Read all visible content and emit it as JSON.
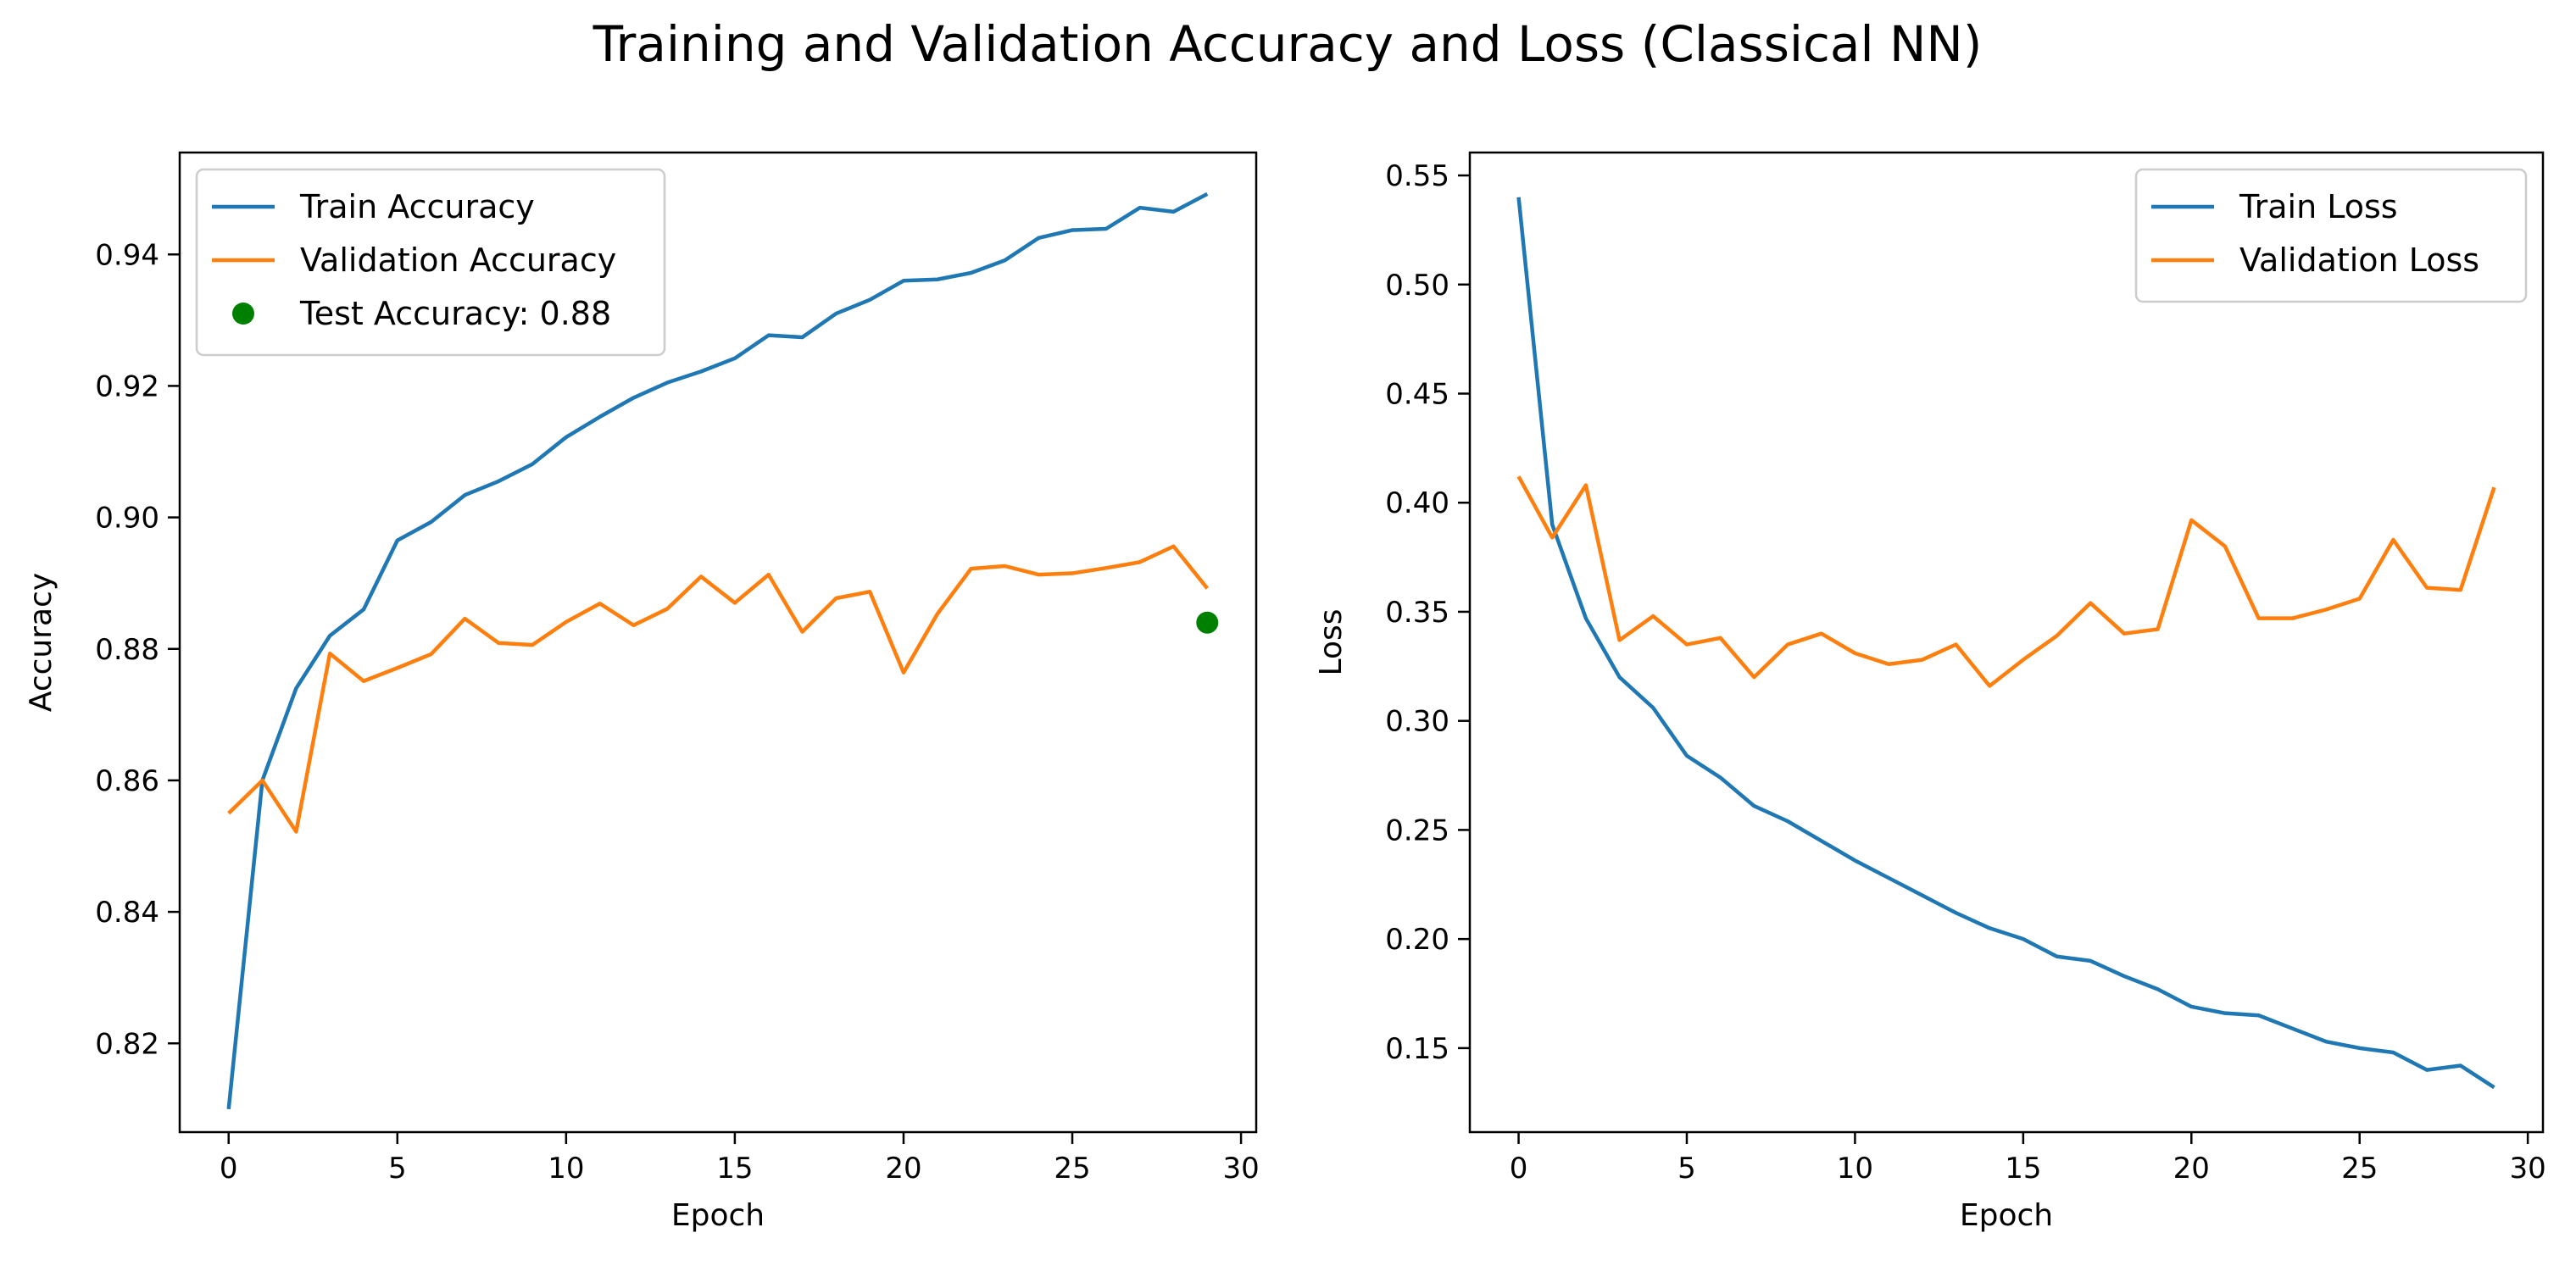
{
  "suptitle": "Training and Validation Accuracy and Loss (Classical NN)",
  "chart_data": [
    {
      "type": "line",
      "xlabel": "Epoch",
      "ylabel": "Accuracy",
      "xlim": [
        -1.45,
        30.45
      ],
      "ylim": [
        0.8065,
        0.9555
      ],
      "xticks": [
        0,
        5,
        10,
        15,
        20,
        25,
        30
      ],
      "xtick_labels": [
        "0",
        "5",
        "10",
        "15",
        "20",
        "25",
        "30"
      ],
      "yticks": [
        0.82,
        0.84,
        0.86,
        0.88,
        0.9,
        0.92,
        0.94
      ],
      "ytick_labels": [
        "0.82",
        "0.84",
        "0.86",
        "0.88",
        "0.90",
        "0.92",
        "0.94"
      ],
      "grid": false,
      "legend_position": "top-left",
      "x": [
        0,
        1,
        2,
        3,
        4,
        5,
        6,
        7,
        8,
        9,
        10,
        11,
        12,
        13,
        14,
        15,
        16,
        17,
        18,
        19,
        20,
        21,
        22,
        23,
        24,
        25,
        26,
        27,
        28,
        29
      ],
      "series": [
        {
          "name": "Train Accuracy",
          "color": "#1f77b4",
          "values": [
            0.81,
            0.86,
            0.874,
            0.882,
            0.886,
            0.8965,
            0.8993,
            0.9034,
            0.9055,
            0.9081,
            0.9122,
            0.9153,
            0.9182,
            0.9205,
            0.9222,
            0.9242,
            0.9277,
            0.9274,
            0.931,
            0.9331,
            0.936,
            0.9362,
            0.9372,
            0.9391,
            0.9425,
            0.9437,
            0.9439,
            0.9471,
            0.9465,
            0.9492
          ]
        },
        {
          "name": "Validation Accuracy",
          "color": "#ff7f0e",
          "values": [
            0.855,
            0.86,
            0.8522,
            0.8793,
            0.8751,
            0.8771,
            0.8792,
            0.8846,
            0.8809,
            0.8806,
            0.8841,
            0.8869,
            0.8836,
            0.8861,
            0.891,
            0.887,
            0.8913,
            0.8826,
            0.8877,
            0.8887,
            0.8764,
            0.8853,
            0.8922,
            0.8926,
            0.8913,
            0.8915,
            0.8923,
            0.8932,
            0.8956,
            0.8892
          ]
        }
      ],
      "points": [
        {
          "name": "Test Accuracy: 0.88",
          "color": "#008000",
          "x": 29,
          "y": 0.884
        }
      ]
    },
    {
      "type": "line",
      "xlabel": "Epoch",
      "ylabel": "Loss",
      "xlim": [
        -1.45,
        30.45
      ],
      "ylim": [
        0.1115,
        0.5605
      ],
      "xticks": [
        0,
        5,
        10,
        15,
        20,
        25,
        30
      ],
      "xtick_labels": [
        "0",
        "5",
        "10",
        "15",
        "20",
        "25",
        "30"
      ],
      "yticks": [
        0.15,
        0.2,
        0.25,
        0.3,
        0.35,
        0.4,
        0.45,
        0.5,
        0.55
      ],
      "ytick_labels": [
        "0.15",
        "0.20",
        "0.25",
        "0.30",
        "0.35",
        "0.40",
        "0.45",
        "0.50",
        "0.55"
      ],
      "grid": false,
      "legend_position": "top-right",
      "x": [
        0,
        1,
        2,
        3,
        4,
        5,
        6,
        7,
        8,
        9,
        10,
        11,
        12,
        13,
        14,
        15,
        16,
        17,
        18,
        19,
        20,
        21,
        22,
        23,
        24,
        25,
        26,
        27,
        28,
        29
      ],
      "series": [
        {
          "name": "Train Loss",
          "color": "#1f77b4",
          "values": [
            0.54,
            0.39,
            0.347,
            0.32,
            0.306,
            0.284,
            0.274,
            0.261,
            0.254,
            0.245,
            0.236,
            0.228,
            0.22,
            0.212,
            0.205,
            0.2,
            0.192,
            0.19,
            0.183,
            0.177,
            0.169,
            0.166,
            0.165,
            0.159,
            0.153,
            0.15,
            0.148,
            0.14,
            0.142,
            0.132
          ]
        },
        {
          "name": "Validation Loss",
          "color": "#ff7f0e",
          "values": [
            0.412,
            0.384,
            0.408,
            0.337,
            0.348,
            0.335,
            0.338,
            0.32,
            0.335,
            0.34,
            0.331,
            0.326,
            0.328,
            0.335,
            0.316,
            0.328,
            0.339,
            0.354,
            0.34,
            0.342,
            0.392,
            0.38,
            0.347,
            0.347,
            0.351,
            0.356,
            0.383,
            0.361,
            0.36,
            0.407
          ]
        }
      ],
      "points": []
    }
  ]
}
